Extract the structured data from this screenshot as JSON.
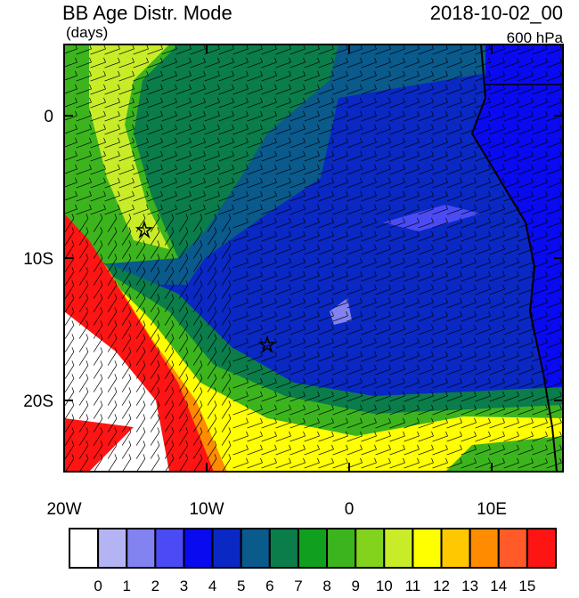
{
  "header": {
    "title": "BB Age Distr. Mode",
    "units": "(days)",
    "time": "2018-10-02_00",
    "level": "600 hPa"
  },
  "map": {
    "xlim": [
      -20,
      15
    ],
    "ylim": [
      -25,
      5
    ],
    "xticks": [
      {
        "value": -20,
        "label": "20W"
      },
      {
        "value": -10,
        "label": "10W"
      },
      {
        "value": 0,
        "label": "0"
      },
      {
        "value": 10,
        "label": "10E"
      }
    ],
    "yticks": [
      {
        "value": 0,
        "label": "0"
      },
      {
        "value": -10,
        "label": "10S"
      },
      {
        "value": -20,
        "label": "20S"
      }
    ]
  },
  "colorbar": {
    "colors": [
      "#ffffff",
      "#b4b4f5",
      "#8282f0",
      "#4b4bf5",
      "#0a0af0",
      "#0a28c3",
      "#0a5a8c",
      "#0a7d4b",
      "#10a01e",
      "#3cb41e",
      "#82d21e",
      "#c8ec28",
      "#ffff00",
      "#ffc800",
      "#ff8c00",
      "#ff5a28",
      "#ff1414"
    ],
    "labels": [
      0,
      1,
      2,
      3,
      4,
      5,
      6,
      7,
      8,
      9,
      10,
      11,
      12,
      13,
      14,
      15
    ]
  }
}
